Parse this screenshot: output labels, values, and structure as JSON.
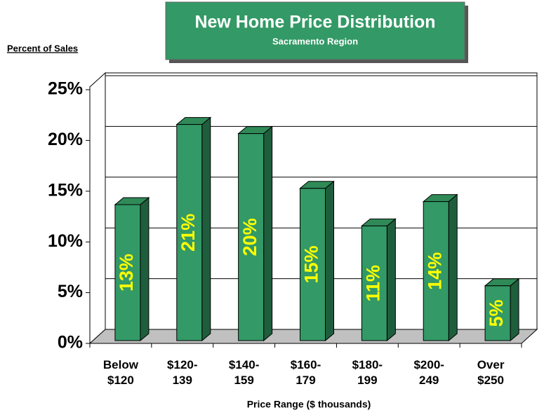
{
  "chart_data": {
    "type": "bar3d",
    "title": "New Home Price Distribution",
    "subtitle": "Sacramento Region",
    "y_axis_label": "Percent of Sales",
    "x_axis_label": "Price Range ($ thousands)",
    "categories": [
      "Below $120",
      "$120-139",
      "$140-159",
      "$160-179",
      "$180-199",
      "$200-249",
      "Over $250"
    ],
    "values": [
      13.4,
      21.3,
      20.4,
      15.0,
      11.3,
      13.7,
      5.4
    ],
    "value_labels": [
      "13%",
      "21%",
      "20%",
      "15%",
      "11%",
      "14%",
      "5%"
    ],
    "color": "#339966",
    "label_color": "#ffff00",
    "ylim": [
      0,
      25
    ],
    "yticks": [
      {
        "value": 0,
        "label": "0%"
      },
      {
        "value": 5,
        "label": "5%"
      },
      {
        "value": 10,
        "label": "10%"
      },
      {
        "value": 15,
        "label": "15%"
      },
      {
        "value": 20,
        "label": "20%"
      },
      {
        "value": 25,
        "label": "25%"
      }
    ],
    "grid": true
  }
}
